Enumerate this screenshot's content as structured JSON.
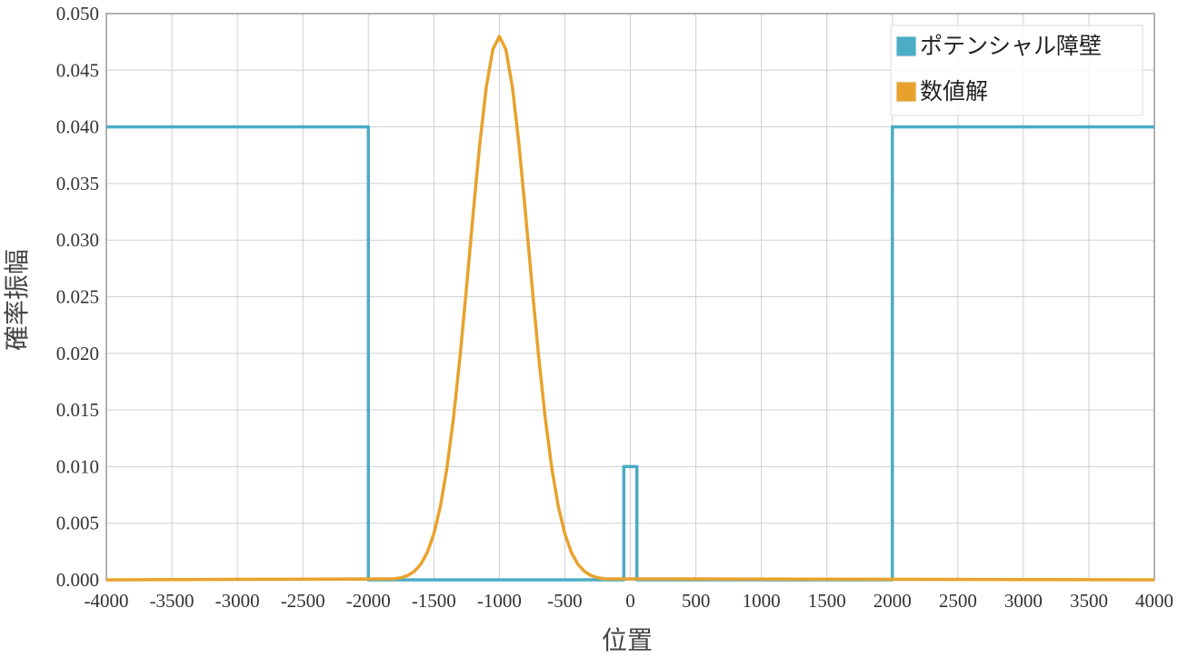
{
  "chart_data": {
    "type": "line",
    "xlabel": "位置",
    "ylabel": "確率振幅",
    "xlim": [
      -4000,
      4000
    ],
    "ylim": [
      0,
      0.05
    ],
    "xticks": [
      -4000,
      -3500,
      -3000,
      -2500,
      -2000,
      -1500,
      -1000,
      -500,
      0,
      500,
      1000,
      1500,
      2000,
      2500,
      3000,
      3500,
      4000
    ],
    "yticks": [
      {
        "value": 0,
        "label": "0.000"
      },
      {
        "value": 0.005,
        "label": "0.005"
      },
      {
        "value": 0.01,
        "label": "0.010"
      },
      {
        "value": 0.015,
        "label": "0.015"
      },
      {
        "value": 0.02,
        "label": "0.020"
      },
      {
        "value": 0.025,
        "label": "0.025"
      },
      {
        "value": 0.03,
        "label": "0.030"
      },
      {
        "value": 0.035,
        "label": "0.035"
      },
      {
        "value": 0.04,
        "label": "0.040"
      },
      {
        "value": 0.045,
        "label": "0.045"
      },
      {
        "value": 0.05,
        "label": "0.050"
      }
    ],
    "grid": true,
    "legend": "upper right",
    "series": [
      {
        "name": "ポテンシャル障壁",
        "color": "#4bacc6",
        "x": [
          -4000,
          -2000,
          -2000,
          -50,
          -50,
          50,
          50,
          2000,
          2000,
          4000
        ],
        "values": [
          0.04,
          0.04,
          0,
          0,
          0.01,
          0.01,
          0,
          0,
          0.04,
          0.04
        ]
      },
      {
        "name": "数値解",
        "color": "#e8a22c",
        "x": [
          -4000,
          -1800,
          -1750,
          -1700,
          -1650,
          -1600,
          -1550,
          -1500,
          -1450,
          -1400,
          -1350,
          -1300,
          -1250,
          -1200,
          -1150,
          -1100,
          -1050,
          -1000,
          -950,
          -900,
          -850,
          -800,
          -750,
          -700,
          -650,
          -600,
          -550,
          -500,
          -450,
          -400,
          -350,
          -300,
          -250,
          -200,
          4000
        ],
        "values": [
          0,
          9e-05,
          0.00019,
          0.00038,
          0.00074,
          0.00137,
          0.00242,
          0.00406,
          0.0065,
          0.00988,
          0.01431,
          0.01973,
          0.02589,
          0.03233,
          0.03843,
          0.04348,
          0.04683,
          0.048,
          0.04683,
          0.04348,
          0.03843,
          0.03233,
          0.02589,
          0.01973,
          0.01431,
          0.00988,
          0.0065,
          0.00406,
          0.00242,
          0.00137,
          0.00074,
          0.00038,
          0.00019,
          9e-05,
          0
        ]
      }
    ]
  }
}
